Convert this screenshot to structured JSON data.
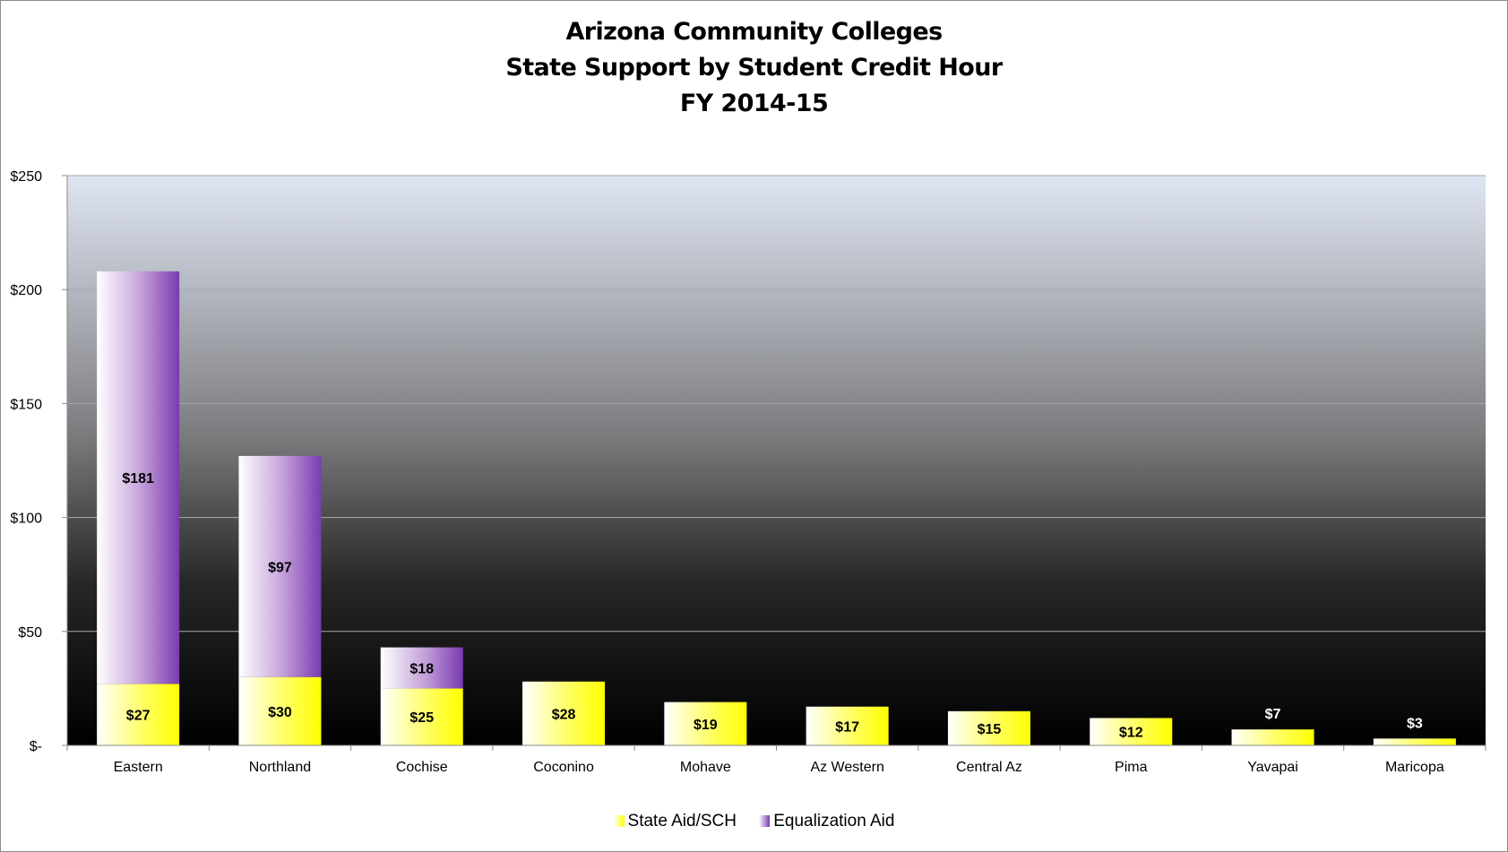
{
  "chart_data": {
    "type": "bar",
    "stacked": true,
    "title": [
      "Arizona Community Colleges",
      "State Support by Student Credit Hour",
      "FY 2014-15"
    ],
    "categories": [
      "Eastern",
      "Northland",
      "Cochise",
      "Coconino",
      "Mohave",
      "Az Western",
      "Central Az",
      "Pima",
      "Yavapai",
      "Maricopa"
    ],
    "series": [
      {
        "name": "State Aid/SCH",
        "values": [
          27,
          30,
          25,
          28,
          19,
          17,
          15,
          12,
          7,
          3
        ],
        "labels": [
          "$27",
          "$30",
          "$25",
          "$28",
          "$19",
          "$17",
          "$15",
          "$12",
          "$7",
          "$3"
        ],
        "color": "#ffff00"
      },
      {
        "name": "Equalization Aid",
        "values": [
          181,
          97,
          18,
          0,
          0,
          0,
          0,
          0,
          0,
          0
        ],
        "labels": [
          "$181",
          "$97",
          "$18",
          "",
          "",
          "",
          "",
          "",
          "",
          ""
        ],
        "color": "#7a3ab0"
      }
    ],
    "ylim": [
      0,
      250
    ],
    "yticks": [
      0,
      50,
      100,
      150,
      200,
      250
    ],
    "ytick_labels": [
      "$-",
      "$50",
      "$100",
      "$150",
      "$200",
      "$250"
    ],
    "grid": true,
    "legend": "bottom"
  }
}
